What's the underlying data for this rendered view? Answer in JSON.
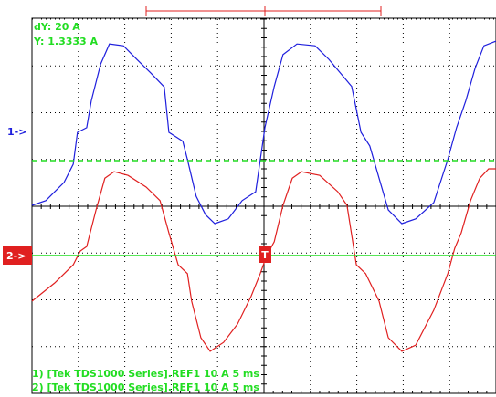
{
  "chart_data": {
    "type": "line",
    "xlim": [
      0,
      10
    ],
    "ylim": [
      -4,
      4
    ],
    "grid": true,
    "cursor_readouts": [
      "dY: 20 A",
      "Y: 1.3333 A"
    ],
    "channel_markers": [
      "1->",
      "2->"
    ],
    "trigger_marker": "T",
    "footer": [
      "1) [Tek TDS1000 Series].REF1  10 A   5 ms",
      "2) [Tek TDS1000 Series].REF1  10 A   5 ms"
    ],
    "series": [
      {
        "color": "#1f1fdd",
        "x": [
          0,
          0.3,
          0.49,
          0.69,
          0.89,
          0.98,
          1.18,
          1.28,
          1.48,
          1.67,
          1.97,
          2.26,
          2.56,
          2.85,
          2.95,
          3.25,
          3.35,
          3.54,
          3.74,
          3.94,
          4.23,
          4.53,
          4.82,
          5.02,
          5.22,
          5.41,
          5.71,
          6.1,
          6.4,
          6.89,
          7.09,
          7.28,
          7.48,
          7.68,
          7.97,
          8.27,
          8.66,
          8.96,
          9.15,
          9.35,
          9.55,
          9.74,
          10
        ],
        "values": [
          0.02,
          0.12,
          0.31,
          0.51,
          0.9,
          1.58,
          1.68,
          2.26,
          3.04,
          3.47,
          3.43,
          3.14,
          2.85,
          2.55,
          1.58,
          1.39,
          1.0,
          0.21,
          -0.18,
          -0.37,
          -0.27,
          0.12,
          0.31,
          1.68,
          2.56,
          3.24,
          3.47,
          3.43,
          3.14,
          2.56,
          1.58,
          1.29,
          0.6,
          -0.08,
          -0.37,
          -0.27,
          0.08,
          1.0,
          1.68,
          2.26,
          2.95,
          3.43,
          3.53
        ]
      },
      {
        "color": "#e02020",
        "x": [
          0,
          0.49,
          0.89,
          1.04,
          1.18,
          1.38,
          1.57,
          1.77,
          2.07,
          2.46,
          2.76,
          2.95,
          3.15,
          3.35,
          3.44,
          3.64,
          3.84,
          4.13,
          4.43,
          4.72,
          4.92,
          5.06,
          5.22,
          5.41,
          5.61,
          5.81,
          6.2,
          6.59,
          6.79,
          6.99,
          7.19,
          7.48,
          7.68,
          7.97,
          8.27,
          8.66,
          8.96,
          9.11,
          9.25,
          9.45,
          9.65,
          9.84,
          10
        ],
        "values": [
          -2.03,
          -1.64,
          -1.25,
          -0.96,
          -0.86,
          -0.08,
          0.6,
          0.74,
          0.66,
          0.41,
          0.12,
          -0.57,
          -1.25,
          -1.44,
          -2.03,
          -2.81,
          -3.1,
          -2.91,
          -2.52,
          -1.93,
          -1.44,
          -1.05,
          -0.76,
          0.02,
          0.6,
          0.74,
          0.66,
          0.31,
          0.02,
          -1.25,
          -1.44,
          -2.03,
          -2.81,
          -3.1,
          -2.97,
          -2.22,
          -1.44,
          -0.9,
          -0.57,
          0.12,
          0.6,
          0.8,
          0.8
        ]
      }
    ]
  }
}
